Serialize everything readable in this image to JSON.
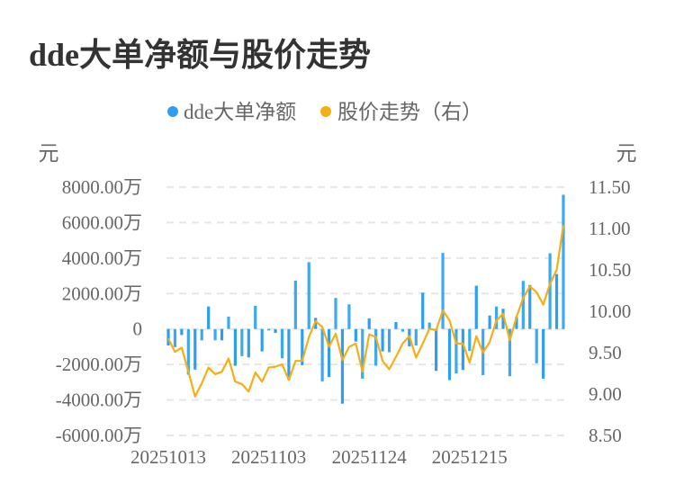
{
  "title": "dde大单净额与股价走势",
  "colors": {
    "bar": "#2e9ef0",
    "line": "#f5ae14",
    "grid": "#e6e6e6",
    "text": "#666666"
  },
  "chart_data": {
    "type": "bar+line",
    "title": "dde大单净额与股价走势",
    "legend": {
      "position": "top",
      "entries": [
        "dde大单净额",
        "股价走势（右）"
      ]
    },
    "y_left": {
      "unit_label": "元",
      "ticks": [
        8000,
        6000,
        4000,
        2000,
        0,
        -2000,
        -4000,
        -6000
      ],
      "tick_labels": [
        "8000.00万",
        "6000.00万",
        "4000.00万",
        "2000.00万",
        "0",
        "-2000.00万",
        "-4000.00万",
        "-6000.00万"
      ],
      "range": [
        -6000,
        8000
      ]
    },
    "y_right": {
      "unit_label": "元",
      "tick_labels": [
        "11.50",
        "11.00",
        "10.50",
        "10.00",
        "9.50",
        "9.00",
        "8.50"
      ],
      "range": [
        8.5,
        11.5
      ]
    },
    "x_tick_labels": [
      {
        "index": 0,
        "label": "20251013"
      },
      {
        "index": 15,
        "label": "20251103"
      },
      {
        "index": 30,
        "label": "20251124"
      },
      {
        "index": 45,
        "label": "20251215"
      }
    ],
    "grid": true,
    "series": [
      {
        "name": "dde大单净额",
        "axis": "left",
        "type": "bar",
        "values": [
          -930,
          -1020,
          -340,
          -2580,
          -2290,
          -640,
          1270,
          -640,
          -640,
          700,
          -2070,
          -1530,
          -1600,
          1310,
          -1260,
          -80,
          -220,
          -1650,
          -2880,
          2730,
          -2040,
          3770,
          630,
          -2950,
          -2710,
          1750,
          -4210,
          1390,
          -710,
          -2800,
          600,
          -2070,
          -1260,
          -1310,
          390,
          -150,
          -980,
          -930,
          2050,
          360,
          -2360,
          4290,
          -2880,
          -2510,
          -2310,
          -1240,
          2440,
          -2600,
          760,
          1270,
          1140,
          -2660,
          680,
          2710,
          2480,
          -1930,
          -2800,
          4270,
          3100,
          7570
        ]
      },
      {
        "name": "股价走势（右）",
        "axis": "right",
        "type": "line",
        "values": [
          9.67,
          9.51,
          9.56,
          9.27,
          8.97,
          9.13,
          9.32,
          9.24,
          9.27,
          9.43,
          9.15,
          9.12,
          9.03,
          9.26,
          9.15,
          9.32,
          9.33,
          9.36,
          9.17,
          9.4,
          9.4,
          9.69,
          9.88,
          9.81,
          9.57,
          9.73,
          9.41,
          9.57,
          9.61,
          9.27,
          9.72,
          9.69,
          9.4,
          9.3,
          9.45,
          9.61,
          9.7,
          9.44,
          9.61,
          9.79,
          9.77,
          10.01,
          9.89,
          9.61,
          9.61,
          9.38,
          9.7,
          9.5,
          9.63,
          9.89,
          9.97,
          9.65,
          9.93,
          10.16,
          10.3,
          10.23,
          10.08,
          10.33,
          10.5,
          11.04
        ]
      }
    ]
  }
}
